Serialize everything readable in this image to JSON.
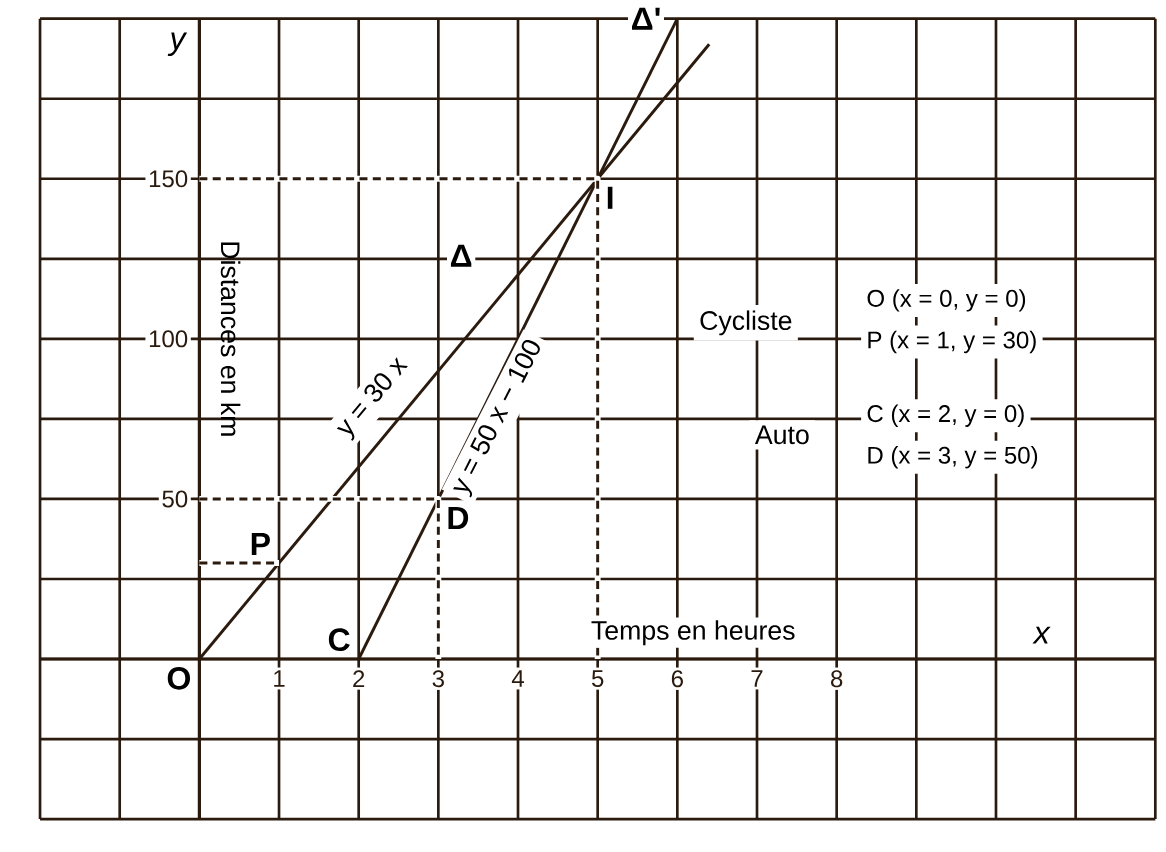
{
  "chart_data": {
    "type": "line",
    "xlabel": "Temps en heures",
    "ylabel": "Distances en km",
    "xlim": [
      -2,
      12
    ],
    "ylim": [
      -50,
      200
    ],
    "xticks": [
      {
        "value": -2,
        "label": null
      },
      {
        "value": -1,
        "label": null
      },
      {
        "value": 0,
        "label": null
      },
      1,
      2,
      3,
      4,
      5,
      6,
      7,
      8,
      {
        "value": 9,
        "label": null
      },
      {
        "value": 10,
        "label": null
      },
      {
        "value": 11,
        "label": null
      },
      {
        "value": 12,
        "label": null
      }
    ],
    "yticks": [
      {
        "value": -50,
        "label": null
      },
      {
        "value": -25,
        "label": null
      },
      {
        "value": 0,
        "label": null
      },
      {
        "value": 25,
        "label": null
      },
      50,
      {
        "value": 75,
        "label": null
      },
      100,
      {
        "value": 125,
        "label": null
      },
      150,
      {
        "value": 175,
        "label": null
      },
      {
        "value": 200,
        "label": null
      }
    ],
    "grid": true,
    "line_style": "solid",
    "color": "#2b1a0e",
    "series": [
      {
        "x": [
          0,
          6.4
        ],
        "values": [
          0,
          192
        ],
        "color": "#2b1a0e"
      },
      {
        "x": [
          2,
          6
        ],
        "values": [
          0,
          200
        ],
        "color": "#2b1a0e"
      },
      {
        "x": [
          0,
          5,
          5
        ],
        "values": [
          150,
          150,
          0
        ],
        "color": "#2b1a0e",
        "line_style": "dashed"
      },
      {
        "x": [
          0,
          3,
          3
        ],
        "values": [
          50,
          50,
          0
        ],
        "color": "#2b1a0e",
        "line_style": "dashed"
      },
      {
        "x": [
          0,
          1
        ],
        "values": [
          30,
          30
        ],
        "color": "#2b1a0e",
        "line_style": "dashed"
      }
    ],
    "annotations": [
      {
        "text": "O",
        "x": 0,
        "y": 0
      },
      {
        "text": "P",
        "x": 1,
        "y": 30
      },
      {
        "text": "C",
        "x": 2,
        "y": 0
      },
      {
        "text": "D",
        "x": 3,
        "y": 50
      },
      {
        "text": "I",
        "x": 5,
        "y": 150
      },
      {
        "text": "Δ",
        "x": 4,
        "y": 120
      },
      {
        "text": "Δ'",
        "x": 6,
        "y": 200
      },
      "y = 30 x",
      "y = 50 x − 100",
      "y",
      "x",
      "Cycliste",
      "O (x = 0, y = 0)",
      "P (x = 1, y = 30)",
      "Auto",
      "C (x = 2, y = 0)",
      "D (x = 3, y = 50)"
    ]
  }
}
